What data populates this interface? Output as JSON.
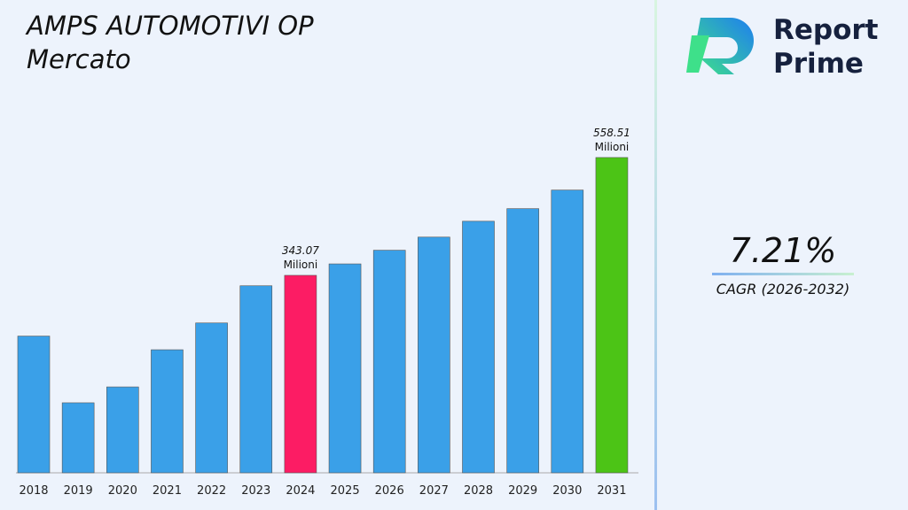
{
  "chart_data": {
    "type": "bar",
    "title": "AMPS AUTOMOTIVI OP Mercato",
    "categories": [
      "2018",
      "2019",
      "2020",
      "2021",
      "2022",
      "2023",
      "2024",
      "2025",
      "2026",
      "2027",
      "2028",
      "2029",
      "2030",
      "2031"
    ],
    "values": [
      232,
      110,
      139,
      207,
      256,
      324,
      343.07,
      364,
      389,
      413,
      442,
      465,
      499,
      558.51
    ],
    "value_labels": [
      null,
      null,
      null,
      null,
      null,
      null,
      "343.07 Milioni",
      null,
      null,
      null,
      null,
      null,
      null,
      "558.51 Milioni"
    ],
    "colors": [
      "#3aa0e8",
      "#3aa0e8",
      "#3aa0e8",
      "#3aa0e8",
      "#3aa0e8",
      "#3aa0e8",
      "#fc1c64",
      "#3aa0e8",
      "#3aa0e8",
      "#3aa0e8",
      "#3aa0e8",
      "#3aa0e8",
      "#3aa0e8",
      "#4cc416"
    ],
    "ylim": [
      -18,
      717
    ]
  },
  "side_panel": {
    "brand": [
      "Report",
      "Prime"
    ],
    "cagr_value": "7.21%",
    "cagr_label": "CAGR (2026-2032)"
  }
}
